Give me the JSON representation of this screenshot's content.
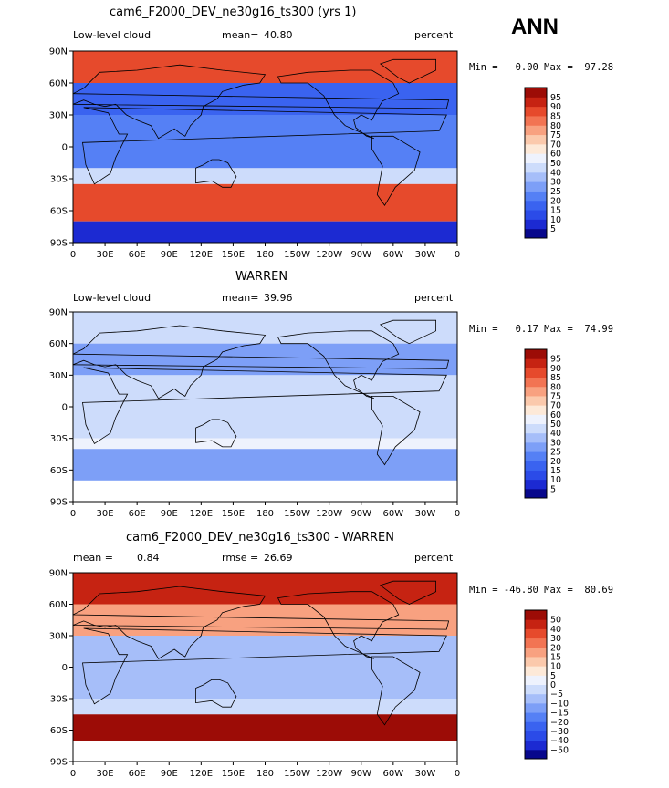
{
  "season": "ANN",
  "colorbar_colors": {
    "ctrl": [
      "#08088c",
      "#1c2ad2",
      "#2b4be8",
      "#3a63f0",
      "#5580f5",
      "#7d9ff7",
      "#a6bef9",
      "#cddcfb",
      "#eef2fd",
      "#fde9d8",
      "#fbc9ac",
      "#f8a180",
      "#f27453",
      "#e64a2c",
      "#c62312",
      "#9c0c06"
    ],
    "diff": [
      "#08088c",
      "#1c2ad2",
      "#2b4be8",
      "#3a63f0",
      "#5580f5",
      "#7d9ff7",
      "#a6bef9",
      "#cddcfb",
      "#eef2fd",
      "#fde9d8",
      "#fbc9ac",
      "#f8a180",
      "#f27453",
      "#e64a2c",
      "#c62312",
      "#9c0c06"
    ]
  },
  "chart_data": [
    {
      "type": "heatmap",
      "title": "cam6_F2000_DEV_ne30g16_ts300 (yrs 1)",
      "variable": "Low-level cloud",
      "units": "percent",
      "stat_left": "mean=",
      "stat_left_value": "40.80",
      "stat_right": "",
      "stat_right_value": "",
      "minmax_text": "Min =   0.00 Max =  97.28",
      "min": 0.0,
      "max": 97.28,
      "x_ticks": [
        "0",
        "30E",
        "60E",
        "90E",
        "120E",
        "150E",
        "180",
        "150W",
        "120W",
        "90W",
        "60W",
        "30W",
        "0"
      ],
      "y_ticks": [
        "90N",
        "60N",
        "30N",
        "0",
        "30S",
        "60S",
        "90S"
      ],
      "colorbar_levels": [
        "95",
        "90",
        "85",
        "80",
        "75",
        "70",
        "60",
        "50",
        "40",
        "30",
        "25",
        "20",
        "15",
        "10",
        "5"
      ]
    },
    {
      "type": "heatmap",
      "title": "WARREN",
      "variable": "Low-level cloud",
      "units": "percent",
      "stat_left": "mean=",
      "stat_left_value": "39.96",
      "stat_right": "",
      "stat_right_value": "",
      "minmax_text": "Min =   0.17 Max =  74.99",
      "min": 0.17,
      "max": 74.99,
      "x_ticks": [
        "0",
        "30E",
        "60E",
        "90E",
        "120E",
        "150E",
        "180",
        "150W",
        "120W",
        "90W",
        "60W",
        "30W",
        "0"
      ],
      "y_ticks": [
        "90N",
        "60N",
        "30N",
        "0",
        "30S",
        "60S",
        "90S"
      ],
      "colorbar_levels": [
        "95",
        "90",
        "85",
        "80",
        "75",
        "70",
        "60",
        "50",
        "40",
        "30",
        "25",
        "20",
        "15",
        "10",
        "5"
      ]
    },
    {
      "type": "heatmap",
      "title": "cam6_F2000_DEV_ne30g16_ts300 - WARREN",
      "variable": "",
      "units": "percent",
      "stat_left": "mean =",
      "stat_left_value": "0.84",
      "stat_right": "rmse =",
      "stat_right_value": "26.69",
      "minmax_text": "Min = -46.80 Max =  80.69",
      "min": -46.8,
      "max": 80.69,
      "x_ticks": [
        "0",
        "30E",
        "60E",
        "90E",
        "120E",
        "150E",
        "180",
        "150W",
        "120W",
        "90W",
        "60W",
        "30W",
        "0"
      ],
      "y_ticks": [
        "90N",
        "60N",
        "30N",
        "0",
        "30S",
        "60S",
        "90S"
      ],
      "colorbar_levels": [
        "50",
        "40",
        "30",
        "20",
        "15",
        "10",
        "5",
        "0",
        "−5",
        "−10",
        "−15",
        "−20",
        "−30",
        "−40",
        "−50"
      ]
    }
  ]
}
